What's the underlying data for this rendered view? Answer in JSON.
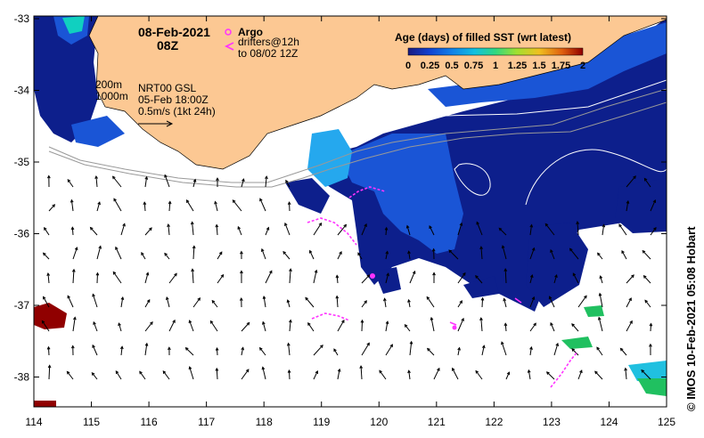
{
  "header": {
    "date": "08-Feb-2021",
    "time": "08Z"
  },
  "legend_argo": {
    "argo_label": "Argo",
    "drifters_line1": "drifters@12h",
    "drifters_line2": "to 08/02 12Z"
  },
  "isobaths": {
    "line1": "200m",
    "line2": "1000m"
  },
  "current_info": {
    "line1": "NRT00 GSL",
    "line2": "05-Feb 18:00Z",
    "line3": "0.5m/s (1kt 24h)"
  },
  "colorbar": {
    "title": "Age (days) of filled SST (wrt latest)",
    "ticks": [
      "0",
      "0.25",
      "0.5",
      "0.75",
      "1",
      "1.25",
      "1.5",
      "1.75",
      "2"
    ],
    "colors": [
      "#1a1a80",
      "#1030c0",
      "#1060e0",
      "#10a0e0",
      "#10d0c0",
      "#40e060",
      "#c0e020",
      "#f0a010",
      "#e04010",
      "#900000"
    ]
  },
  "axes": {
    "lon_ticks": [
      "114",
      "115",
      "116",
      "117",
      "118",
      "119",
      "120",
      "121",
      "122",
      "123",
      "124",
      "125"
    ],
    "lat_ticks": [
      "-33",
      "-34",
      "-35",
      "-36",
      "-37",
      "-38"
    ]
  },
  "credit": "© IMOS 10-Feb-2021 05:08 Hobart",
  "colors": {
    "land": "#fcc893",
    "ocean_deep": "#0d1f8c",
    "ocean_mid": "#1a55d6",
    "ocean_light": "#25a8ee",
    "drifter": "#ff33ff"
  }
}
